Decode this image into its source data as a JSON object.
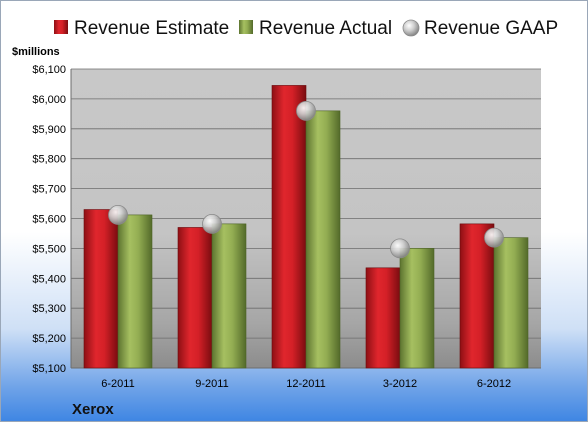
{
  "chart_data": {
    "type": "bar",
    "title": "",
    "ylabel": "$millions",
    "xlabel": "",
    "company": "Xerox",
    "categories": [
      "6-2011",
      "9-2011",
      "12-2011",
      "3-2012",
      "6-2012"
    ],
    "series": [
      {
        "name": "Revenue Estimate",
        "kind": "bar",
        "color": "#d42027",
        "values": [
          5630,
          5570,
          6045,
          5435,
          5582
        ]
      },
      {
        "name": "Revenue Actual",
        "kind": "bar",
        "color": "#93ad52",
        "values": [
          5612,
          5582,
          5960,
          5500,
          5536
        ]
      },
      {
        "name": "Revenue GAAP",
        "kind": "marker",
        "color": "#b4b4b4",
        "values": [
          5612,
          5582,
          5960,
          5500,
          5536
        ]
      }
    ],
    "ylim": [
      5100,
      6100
    ],
    "yticks": [
      5100,
      5200,
      5300,
      5400,
      5500,
      5600,
      5700,
      5800,
      5900,
      6000,
      6100
    ],
    "ytick_labels": [
      "$5,100",
      "$5,200",
      "$5,300",
      "$5,400",
      "$5,500",
      "$5,600",
      "$5,700",
      "$5,800",
      "$5,900",
      "$6,000",
      "$6,100"
    ],
    "grid": true,
    "legend_position": "top"
  }
}
